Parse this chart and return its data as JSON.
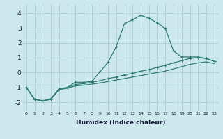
{
  "xlabel": "Humidex (Indice chaleur)",
  "background_color": "#cce8ec",
  "grid_color": "#aacdd4",
  "line_color": "#2e7d72",
  "xlim": [
    -0.5,
    23.5
  ],
  "ylim": [
    -2.6,
    4.6
  ],
  "yticks": [
    -2,
    -1,
    0,
    1,
    2,
    3,
    4
  ],
  "xticks": [
    0,
    1,
    2,
    3,
    4,
    5,
    6,
    7,
    8,
    9,
    10,
    11,
    12,
    13,
    14,
    15,
    16,
    17,
    18,
    19,
    20,
    21,
    22,
    23
  ],
  "curve1_x": [
    0,
    1,
    2,
    3,
    4,
    5,
    6,
    7,
    8,
    9,
    10,
    11,
    12,
    13,
    14,
    15,
    16,
    17,
    18,
    19,
    20,
    21,
    22,
    23
  ],
  "curve1_y": [
    -1.0,
    -1.8,
    -1.9,
    -1.8,
    -1.1,
    -1.0,
    -0.65,
    -0.65,
    -0.6,
    0.05,
    0.7,
    1.75,
    3.3,
    3.55,
    3.85,
    3.65,
    3.35,
    2.95,
    1.45,
    1.05,
    1.05,
    1.05,
    0.95,
    0.75
  ],
  "curve2_x": [
    0,
    1,
    2,
    3,
    4,
    5,
    6,
    7,
    8,
    9,
    10,
    11,
    12,
    13,
    14,
    15,
    16,
    17,
    18,
    19,
    20,
    21,
    22,
    23
  ],
  "curve2_y": [
    -1.0,
    -1.8,
    -1.9,
    -1.75,
    -1.1,
    -1.0,
    -0.8,
    -0.75,
    -0.65,
    -0.55,
    -0.4,
    -0.3,
    -0.15,
    -0.05,
    0.1,
    0.2,
    0.35,
    0.5,
    0.65,
    0.8,
    0.95,
    1.0,
    0.95,
    0.75
  ],
  "curve3_x": [
    0,
    1,
    2,
    3,
    4,
    5,
    6,
    7,
    8,
    9,
    10,
    11,
    12,
    13,
    14,
    15,
    16,
    17,
    18,
    19,
    20,
    21,
    22,
    23
  ],
  "curve3_y": [
    -1.0,
    -1.8,
    -1.9,
    -1.8,
    -1.15,
    -1.05,
    -0.9,
    -0.85,
    -0.78,
    -0.7,
    -0.6,
    -0.5,
    -0.4,
    -0.3,
    -0.2,
    -0.1,
    0.0,
    0.1,
    0.25,
    0.4,
    0.55,
    0.65,
    0.72,
    0.6
  ],
  "markersize": 3,
  "linewidth": 0.9
}
